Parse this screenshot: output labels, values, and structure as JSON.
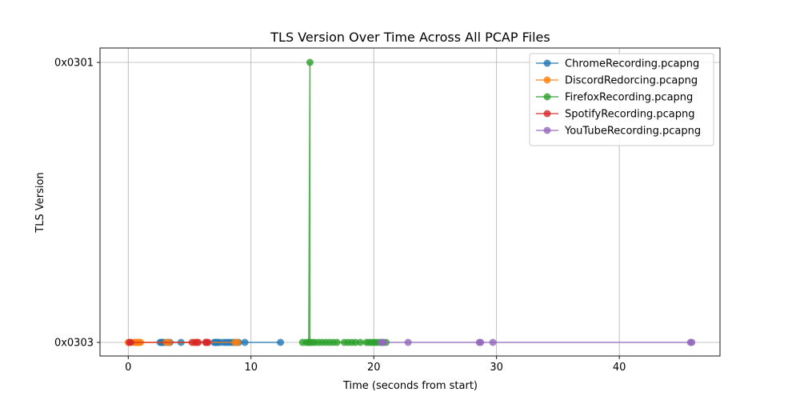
{
  "chart_data": {
    "type": "line",
    "title": "TLS Version Over Time Across All PCAP Files",
    "xlabel": "Time (seconds from start)",
    "ylabel": "TLS Version",
    "xlim": [
      -2.3,
      48.2
    ],
    "x_ticks": [
      0,
      10,
      20,
      30,
      40
    ],
    "y_categories": [
      "0x0303",
      "0x0301"
    ],
    "grid": true,
    "legend_position": "top-right",
    "series": [
      {
        "name": "ChromeRecording.pcapng",
        "color": "#1f77b4",
        "points": [
          [
            2.6,
            "0x0303"
          ],
          [
            2.7,
            "0x0303"
          ],
          [
            2.8,
            "0x0303"
          ],
          [
            2.9,
            "0x0303"
          ],
          [
            3.2,
            "0x0303"
          ],
          [
            3.4,
            "0x0303"
          ],
          [
            4.3,
            "0x0303"
          ],
          [
            7.0,
            "0x0303"
          ],
          [
            7.1,
            "0x0303"
          ],
          [
            7.2,
            "0x0303"
          ],
          [
            7.3,
            "0x0303"
          ],
          [
            7.5,
            "0x0303"
          ],
          [
            7.8,
            "0x0303"
          ],
          [
            8.0,
            "0x0303"
          ],
          [
            8.2,
            "0x0303"
          ],
          [
            8.4,
            "0x0303"
          ],
          [
            8.6,
            "0x0303"
          ],
          [
            8.8,
            "0x0303"
          ],
          [
            9.0,
            "0x0303"
          ],
          [
            9.5,
            "0x0303"
          ],
          [
            12.4,
            "0x0303"
          ]
        ]
      },
      {
        "name": "DiscordRedorcing.pcapng",
        "color": "#ff7f0e",
        "points": [
          [
            0.0,
            "0x0303"
          ],
          [
            0.5,
            "0x0303"
          ],
          [
            0.6,
            "0x0303"
          ],
          [
            0.7,
            "0x0303"
          ],
          [
            0.8,
            "0x0303"
          ],
          [
            0.9,
            "0x0303"
          ],
          [
            1.0,
            "0x0303"
          ],
          [
            3.1,
            "0x0303"
          ],
          [
            3.3,
            "0x0303"
          ],
          [
            5.4,
            "0x0303"
          ],
          [
            5.6,
            "0x0303"
          ],
          [
            8.7,
            "0x0303"
          ],
          [
            8.9,
            "0x0303"
          ]
        ]
      },
      {
        "name": "FirefoxRecording.pcapng",
        "color": "#2ca02c",
        "points": [
          [
            14.2,
            "0x0303"
          ],
          [
            14.5,
            "0x0303"
          ],
          [
            14.7,
            "0x0303"
          ],
          [
            14.8,
            "0x0301"
          ],
          [
            14.8,
            "0x0303"
          ],
          [
            15.0,
            "0x0303"
          ],
          [
            15.2,
            "0x0303"
          ],
          [
            15.5,
            "0x0303"
          ],
          [
            15.8,
            "0x0303"
          ],
          [
            16.1,
            "0x0303"
          ],
          [
            16.4,
            "0x0303"
          ],
          [
            16.7,
            "0x0303"
          ],
          [
            17.0,
            "0x0303"
          ],
          [
            17.6,
            "0x0303"
          ],
          [
            17.9,
            "0x0303"
          ],
          [
            18.2,
            "0x0303"
          ],
          [
            18.5,
            "0x0303"
          ],
          [
            18.9,
            "0x0303"
          ],
          [
            19.4,
            "0x0303"
          ],
          [
            19.6,
            "0x0303"
          ],
          [
            19.8,
            "0x0303"
          ],
          [
            20.0,
            "0x0303"
          ],
          [
            20.2,
            "0x0303"
          ],
          [
            20.4,
            "0x0303"
          ],
          [
            20.7,
            "0x0303"
          ],
          [
            21.0,
            "0x0303"
          ]
        ]
      },
      {
        "name": "SpotifyRecording.pcapng",
        "color": "#d62728",
        "points": [
          [
            0.1,
            "0x0303"
          ],
          [
            0.2,
            "0x0303"
          ],
          [
            5.2,
            "0x0303"
          ],
          [
            5.5,
            "0x0303"
          ],
          [
            5.7,
            "0x0303"
          ],
          [
            6.3,
            "0x0303"
          ],
          [
            6.4,
            "0x0303"
          ],
          [
            6.5,
            "0x0303"
          ]
        ]
      },
      {
        "name": "YouTubeRecording.pcapng",
        "color": "#9467bd",
        "points": [
          [
            20.6,
            "0x0303"
          ],
          [
            20.8,
            "0x0303"
          ],
          [
            22.8,
            "0x0303"
          ],
          [
            28.6,
            "0x0303"
          ],
          [
            28.7,
            "0x0303"
          ],
          [
            29.7,
            "0x0303"
          ],
          [
            45.8,
            "0x0303"
          ],
          [
            45.9,
            "0x0303"
          ]
        ]
      }
    ]
  }
}
